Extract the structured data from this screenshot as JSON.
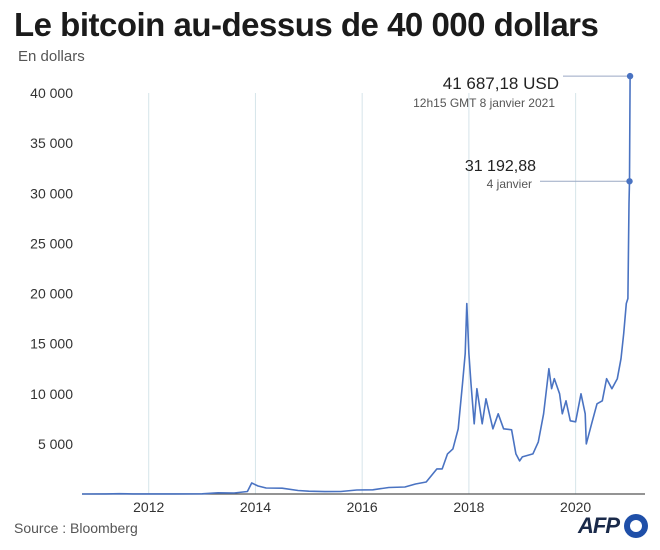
{
  "header": {
    "title": "Le bitcoin au-dessus de 40 000 dollars",
    "subtitle": "En dollars"
  },
  "footer": {
    "source": "Source : Bloomberg",
    "logo_text": "AFP"
  },
  "colors": {
    "line": "#4a73c2",
    "grid": "#d6e4ea",
    "axis": "#555555",
    "marker": "#4a73c2",
    "annotation_line": "#9aa8c4"
  },
  "chart_data": {
    "type": "line",
    "title": "Le bitcoin au-dessus de 40 000 dollars",
    "ylabel": "En dollars",
    "xlabel": "",
    "xlim": [
      2010.75,
      2021.3
    ],
    "ylim": [
      0,
      40000
    ],
    "y_ticks": [
      5000,
      10000,
      15000,
      20000,
      25000,
      30000,
      35000,
      40000
    ],
    "y_tick_labels": [
      "5 000",
      "10 000",
      "15 000",
      "20 000",
      "25 000",
      "30 000",
      "35 000",
      "40 000"
    ],
    "x_ticks": [
      2012,
      2014,
      2016,
      2018,
      2020
    ],
    "x_tick_labels": [
      "2012",
      "2014",
      "2016",
      "2018",
      "2020"
    ],
    "grid": "vertical",
    "series": [
      {
        "points": [
          [
            2010.75,
            0
          ],
          [
            2011.2,
            5
          ],
          [
            2011.45,
            25
          ],
          [
            2011.7,
            5
          ],
          [
            2012.0,
            5
          ],
          [
            2012.5,
            7
          ],
          [
            2013.0,
            15
          ],
          [
            2013.3,
            120
          ],
          [
            2013.6,
            100
          ],
          [
            2013.85,
            250
          ],
          [
            2013.93,
            1100
          ],
          [
            2014.05,
            800
          ],
          [
            2014.2,
            600
          ],
          [
            2014.5,
            580
          ],
          [
            2014.8,
            350
          ],
          [
            2015.0,
            280
          ],
          [
            2015.3,
            240
          ],
          [
            2015.6,
            250
          ],
          [
            2015.9,
            400
          ],
          [
            2016.2,
            420
          ],
          [
            2016.5,
            650
          ],
          [
            2016.8,
            700
          ],
          [
            2017.0,
            1000
          ],
          [
            2017.2,
            1200
          ],
          [
            2017.4,
            2500
          ],
          [
            2017.5,
            2500
          ],
          [
            2017.6,
            4000
          ],
          [
            2017.7,
            4500
          ],
          [
            2017.8,
            6500
          ],
          [
            2017.88,
            11000
          ],
          [
            2017.93,
            14000
          ],
          [
            2017.96,
            19000
          ],
          [
            2018.0,
            14000
          ],
          [
            2018.04,
            11000
          ],
          [
            2018.1,
            7000
          ],
          [
            2018.15,
            10500
          ],
          [
            2018.25,
            7000
          ],
          [
            2018.32,
            9500
          ],
          [
            2018.45,
            6500
          ],
          [
            2018.55,
            8000
          ],
          [
            2018.65,
            6500
          ],
          [
            2018.8,
            6400
          ],
          [
            2018.88,
            4000
          ],
          [
            2018.95,
            3300
          ],
          [
            2019.0,
            3700
          ],
          [
            2019.2,
            4000
          ],
          [
            2019.3,
            5200
          ],
          [
            2019.4,
            8000
          ],
          [
            2019.5,
            12500
          ],
          [
            2019.55,
            10500
          ],
          [
            2019.6,
            11500
          ],
          [
            2019.7,
            10000
          ],
          [
            2019.75,
            8000
          ],
          [
            2019.82,
            9300
          ],
          [
            2019.9,
            7300
          ],
          [
            2020.0,
            7200
          ],
          [
            2020.1,
            10000
          ],
          [
            2020.18,
            8000
          ],
          [
            2020.2,
            5000
          ],
          [
            2020.3,
            7000
          ],
          [
            2020.4,
            9000
          ],
          [
            2020.5,
            9300
          ],
          [
            2020.58,
            11500
          ],
          [
            2020.68,
            10500
          ],
          [
            2020.78,
            11500
          ],
          [
            2020.85,
            13500
          ],
          [
            2020.9,
            16000
          ],
          [
            2020.95,
            19000
          ],
          [
            2020.98,
            19500
          ],
          [
            2021.0,
            29000
          ],
          [
            2021.01,
            31192.88
          ],
          [
            2021.02,
            41687.18
          ]
        ]
      }
    ],
    "annotations": [
      {
        "label": "41 687,18 USD",
        "sublabel": "12h15 GMT 8 janvier 2021",
        "x": 2021.02,
        "y": 41687.18
      },
      {
        "label": "31 192,88",
        "sublabel": "4 janvier",
        "x": 2021.01,
        "y": 31192.88
      }
    ]
  }
}
